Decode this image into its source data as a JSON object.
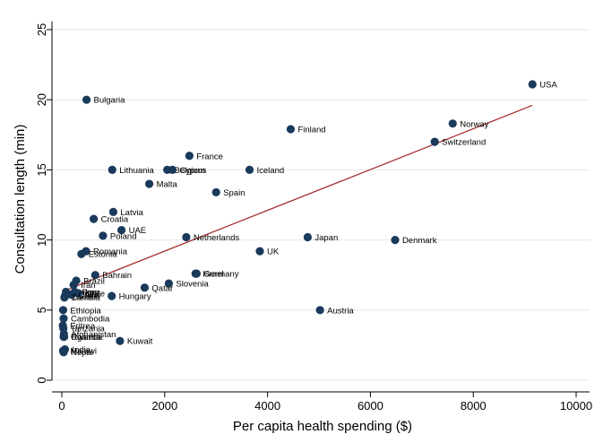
{
  "chart_data": {
    "type": "scatter",
    "title": "",
    "xlabel": "Per capita health spending ($)",
    "ylabel": "Consultation length (min)",
    "xlim": [
      0,
      10000
    ],
    "ylim": [
      0,
      25
    ],
    "xticks": [
      0,
      2000,
      4000,
      6000,
      8000,
      10000
    ],
    "yticks": [
      0,
      5,
      10,
      15,
      20,
      25
    ],
    "grid": "horizontal",
    "legend": "none",
    "point_color": "#1a3a5c",
    "fit_color": "#a83232",
    "points": [
      {
        "label": "USA",
        "x": 9150,
        "y": 21.1
      },
      {
        "label": "Bulgaria",
        "x": 480,
        "y": 20.0
      },
      {
        "label": "Norway",
        "x": 7600,
        "y": 18.3
      },
      {
        "label": "Finland",
        "x": 4450,
        "y": 17.9
      },
      {
        "label": "Switzerland",
        "x": 7250,
        "y": 17.0
      },
      {
        "label": "France",
        "x": 2480,
        "y": 16.0
      },
      {
        "label": "Lithuania",
        "x": 980,
        "y": 15.0
      },
      {
        "label": "Belgium",
        "x": 2050,
        "y": 15.0
      },
      {
        "label": "Cyprus",
        "x": 2150,
        "y": 15.0
      },
      {
        "label": "Iceland",
        "x": 3650,
        "y": 15.0
      },
      {
        "label": "Malta",
        "x": 1700,
        "y": 14.0
      },
      {
        "label": "Spain",
        "x": 3000,
        "y": 13.4
      },
      {
        "label": "Latvia",
        "x": 1000,
        "y": 12.0
      },
      {
        "label": "Croatia",
        "x": 620,
        "y": 11.5
      },
      {
        "label": "UAE",
        "x": 1160,
        "y": 10.7
      },
      {
        "label": "Poland",
        "x": 800,
        "y": 10.3
      },
      {
        "label": "Netherlands",
        "x": 2420,
        "y": 10.2
      },
      {
        "label": "Japan",
        "x": 4780,
        "y": 10.2
      },
      {
        "label": "Denmark",
        "x": 6480,
        "y": 10.0
      },
      {
        "label": "UK",
        "x": 3850,
        "y": 9.2
      },
      {
        "label": "Romania",
        "x": 470,
        "y": 9.2
      },
      {
        "label": "Estonia",
        "x": 380,
        "y": 9.0
      },
      {
        "label": "Israel",
        "x": 2600,
        "y": 7.6
      },
      {
        "label": "Germany",
        "x": 2620,
        "y": 7.6
      },
      {
        "label": "Bahrain",
        "x": 650,
        "y": 7.5
      },
      {
        "label": "Brazil",
        "x": 280,
        "y": 7.1
      },
      {
        "label": "Iran",
        "x": 230,
        "y": 6.8
      },
      {
        "label": "Slovenia",
        "x": 2080,
        "y": 6.9
      },
      {
        "label": "Qatar",
        "x": 1610,
        "y": 6.6
      },
      {
        "label": "Hungary",
        "x": 970,
        "y": 6.0
      },
      {
        "label": "Turkey",
        "x": 80,
        "y": 6.3
      },
      {
        "label": "Sudan",
        "x": 60,
        "y": 6.0
      },
      {
        "label": "Peru",
        "x": 250,
        "y": 6.3
      },
      {
        "label": "Chile",
        "x": 320,
        "y": 6.2
      },
      {
        "label": "China",
        "x": 180,
        "y": 6.1
      },
      {
        "label": "Zambia",
        "x": 50,
        "y": 5.9
      },
      {
        "label": "Austria",
        "x": 5020,
        "y": 5.0
      },
      {
        "label": "Ethiopia",
        "x": 25,
        "y": 5.0
      },
      {
        "label": "Cambodia",
        "x": 35,
        "y": 4.4
      },
      {
        "label": "Eritrea",
        "x": 20,
        "y": 3.9
      },
      {
        "label": "Tanzania",
        "x": 30,
        "y": 3.7
      },
      {
        "label": "Afghanistan",
        "x": 40,
        "y": 3.3
      },
      {
        "label": "Uganda",
        "x": 35,
        "y": 3.1
      },
      {
        "label": "Rwanda",
        "x": 45,
        "y": 3.1
      },
      {
        "label": "Kuwait",
        "x": 1130,
        "y": 2.8
      },
      {
        "label": "India",
        "x": 60,
        "y": 2.2
      },
      {
        "label": "Malawi",
        "x": 25,
        "y": 2.1
      },
      {
        "label": "Nepal",
        "x": 35,
        "y": 2.0
      }
    ],
    "fit_line": {
      "x": [
        0,
        9150
      ],
      "y": [
        6.3,
        19.6
      ]
    }
  }
}
